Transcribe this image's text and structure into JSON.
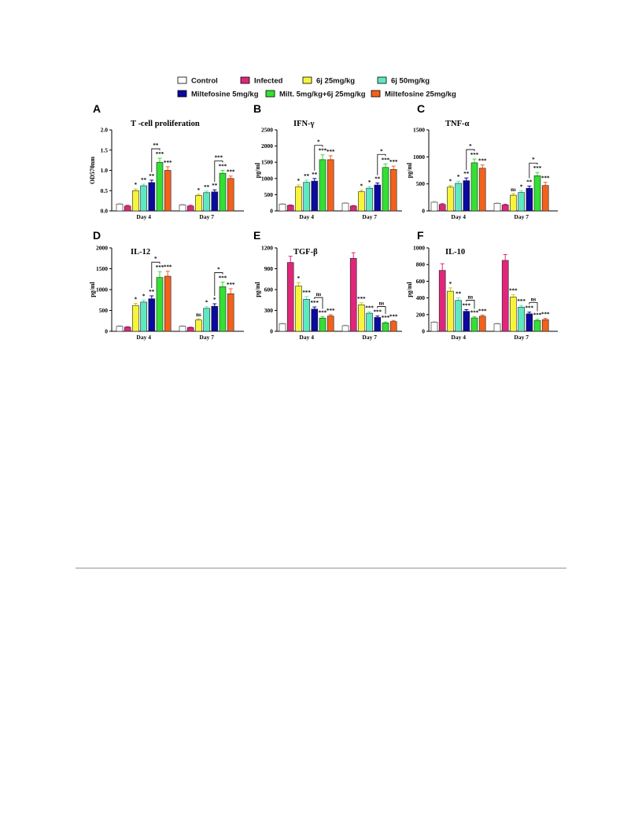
{
  "legend": [
    {
      "name": "Control",
      "color": "#ffffff"
    },
    {
      "name": "Infected",
      "color": "#e0267a"
    },
    {
      "name": "6j 25mg/kg",
      "color": "#f7f53a"
    },
    {
      "name": "6j  50mg/kg",
      "color": "#5ee8c2"
    },
    {
      "name": "Miltefosine 5mg/kg",
      "color": "#0a0a9e"
    },
    {
      "name": "Milt. 5mg/kg+6j 25mg/kg",
      "color": "#33e033"
    },
    {
      "name": "Miltefosine 25mg/kg",
      "color": "#f2621c"
    }
  ],
  "error_colors": [
    "#cccccc",
    "#e0267a",
    "#d9c800",
    "#5ee8c2",
    "#0a0a9e",
    "#33e033",
    "#f2621c"
  ],
  "chart_data": [
    {
      "letter": "A",
      "type": "bar",
      "title": "T -cell proliferation",
      "ylabel": "OD570nm",
      "ylim": [
        0,
        2.0
      ],
      "yticks": [
        "0.0",
        "0.5",
        "1.0",
        "1.5",
        "2.0"
      ],
      "categories": [
        "Day 4",
        "Day 7"
      ],
      "series": [
        {
          "name": "Control",
          "values": [
            0.17,
            0.15
          ],
          "errors": [
            0.02,
            0.02
          ]
        },
        {
          "name": "Infected",
          "values": [
            0.12,
            0.12
          ],
          "errors": [
            0.02,
            0.02
          ]
        },
        {
          "name": "6j 25mg/kg",
          "values": [
            0.5,
            0.38
          ],
          "errors": [
            0.04,
            0.03
          ]
        },
        {
          "name": "6j  50mg/kg",
          "values": [
            0.62,
            0.45
          ],
          "errors": [
            0.04,
            0.04
          ]
        },
        {
          "name": "Miltefosine 5mg/kg",
          "values": [
            0.7,
            0.47
          ],
          "errors": [
            0.06,
            0.05
          ]
        },
        {
          "name": "Milt. 5mg/kg+6j 25mg/kg",
          "values": [
            1.2,
            0.93
          ],
          "errors": [
            0.1,
            0.07
          ]
        },
        {
          "name": "Miltefosine 25mg/kg",
          "values": [
            1.0,
            0.8
          ],
          "errors": [
            0.09,
            0.06
          ]
        }
      ],
      "sig": [
        [
          "",
          "",
          "*",
          "**",
          "**",
          "***",
          "***"
        ],
        [
          "",
          "",
          "*",
          "**",
          "**",
          "***",
          "***"
        ]
      ],
      "brackets": [
        {
          "label": "**"
        },
        {
          "label": "***"
        }
      ]
    },
    {
      "letter": "B",
      "type": "bar",
      "title": "IFN-γ",
      "ylabel": "pg/ml",
      "ylim": [
        0,
        2500
      ],
      "yticks": [
        "0",
        "500",
        "1000",
        "1500",
        "2000",
        "2500"
      ],
      "categories": [
        "Day 4",
        "Day 7"
      ],
      "series": [
        {
          "name": "Control",
          "values": [
            210,
            240
          ],
          "errors": [
            20,
            20
          ]
        },
        {
          "name": "Infected",
          "values": [
            170,
            150
          ],
          "errors": [
            15,
            15
          ]
        },
        {
          "name": "6j 25mg/kg",
          "values": [
            740,
            590
          ],
          "errors": [
            60,
            50
          ]
        },
        {
          "name": "6j  50mg/kg",
          "values": [
            880,
            700
          ],
          "errors": [
            70,
            50
          ]
        },
        {
          "name": "Miltefosine 5mg/kg",
          "values": [
            920,
            800
          ],
          "errors": [
            80,
            60
          ]
        },
        {
          "name": "Milt. 5mg/kg+6j 25mg/kg",
          "values": [
            1580,
            1340
          ],
          "errors": [
            150,
            110
          ]
        },
        {
          "name": "Miltefosine 25mg/kg",
          "values": [
            1580,
            1280
          ],
          "errors": [
            120,
            100
          ]
        }
      ],
      "sig": [
        [
          "",
          "",
          "*",
          "**",
          "**",
          "***",
          "***"
        ],
        [
          "",
          "",
          "*",
          "*",
          "**",
          "***",
          "***"
        ]
      ],
      "brackets": [
        {
          "label": "*"
        },
        {
          "label": "*"
        }
      ]
    },
    {
      "letter": "C",
      "type": "bar",
      "title": "TNF-α",
      "ylabel": "pg/ml",
      "ylim": [
        0,
        1500
      ],
      "yticks": [
        "0",
        "500",
        "1000",
        "1500"
      ],
      "categories": [
        "Day 4",
        "Day 7"
      ],
      "series": [
        {
          "name": "Control",
          "values": [
            160,
            140
          ],
          "errors": [
            20,
            15
          ]
        },
        {
          "name": "Infected",
          "values": [
            120,
            110
          ],
          "errors": [
            15,
            15
          ]
        },
        {
          "name": "6j 25mg/kg",
          "values": [
            440,
            290
          ],
          "errors": [
            30,
            30
          ]
        },
        {
          "name": "6j  50mg/kg",
          "values": [
            510,
            340
          ],
          "errors": [
            40,
            30
          ]
        },
        {
          "name": "Miltefosine 5mg/kg",
          "values": [
            560,
            420
          ],
          "errors": [
            50,
            40
          ]
        },
        {
          "name": "Milt. 5mg/kg+6j 25mg/kg",
          "values": [
            890,
            650
          ],
          "errors": [
            70,
            60
          ]
        },
        {
          "name": "Miltefosine 25mg/kg",
          "values": [
            790,
            470
          ],
          "errors": [
            60,
            60
          ]
        }
      ],
      "sig": [
        [
          "",
          "",
          "*",
          "*",
          "**",
          "***",
          "***"
        ],
        [
          "",
          "",
          "ns",
          "*",
          "**",
          "***",
          "***"
        ]
      ],
      "brackets": [
        {
          "label": "*"
        },
        {
          "label": "*"
        }
      ]
    },
    {
      "letter": "D",
      "type": "bar",
      "title": "IL-12",
      "ylabel": "pg/ml",
      "ylim": [
        0,
        2000
      ],
      "yticks": [
        "0",
        "500",
        "1000",
        "1500",
        "2000"
      ],
      "categories": [
        "Day 4",
        "Day 7"
      ],
      "series": [
        {
          "name": "Control",
          "values": [
            120,
            120
          ],
          "errors": [
            15,
            15
          ]
        },
        {
          "name": "Infected",
          "values": [
            100,
            90
          ],
          "errors": [
            10,
            10
          ]
        },
        {
          "name": "6j 25mg/kg",
          "values": [
            620,
            270
          ],
          "errors": [
            50,
            30
          ]
        },
        {
          "name": "6j  50mg/kg",
          "values": [
            700,
            550
          ],
          "errors": [
            50,
            40
          ]
        },
        {
          "name": "Miltefosine 5mg/kg",
          "values": [
            780,
            600
          ],
          "errors": [
            70,
            60
          ]
        },
        {
          "name": "Milt. 5mg/kg+6j 25mg/kg",
          "values": [
            1290,
            1070
          ],
          "errors": [
            140,
            110
          ]
        },
        {
          "name": "Miltefosine 25mg/kg",
          "values": [
            1320,
            900
          ],
          "errors": [
            120,
            120
          ]
        }
      ],
      "sig": [
        [
          "",
          "",
          "*",
          "*",
          "**",
          "***",
          "***"
        ],
        [
          "",
          "",
          "ns",
          "*",
          "*",
          "***",
          "***"
        ]
      ],
      "brackets": [
        {
          "label": "*"
        },
        {
          "label": "*"
        }
      ]
    },
    {
      "letter": "E",
      "type": "bar",
      "title": "TGF-β",
      "ylabel": "pg/ml",
      "ylim": [
        0,
        1200
      ],
      "yticks": [
        "0",
        "300",
        "600",
        "900",
        "1200"
      ],
      "categories": [
        "Day 4",
        "Day 7"
      ],
      "series": [
        {
          "name": "Control",
          "values": [
            110,
            80
          ],
          "errors": [
            10,
            10
          ]
        },
        {
          "name": "Infected",
          "values": [
            990,
            1050
          ],
          "errors": [
            90,
            80
          ]
        },
        {
          "name": "6j 25mg/kg",
          "values": [
            650,
            380
          ],
          "errors": [
            50,
            30
          ]
        },
        {
          "name": "6j  50mg/kg",
          "values": [
            460,
            260
          ],
          "errors": [
            40,
            20
          ]
        },
        {
          "name": "Miltefosine 5mg/kg",
          "values": [
            320,
            200
          ],
          "errors": [
            30,
            20
          ]
        },
        {
          "name": "Milt. 5mg/kg+6j 25mg/kg",
          "values": [
            190,
            120
          ],
          "errors": [
            20,
            15
          ]
        },
        {
          "name": "Miltefosine 25mg/kg",
          "values": [
            220,
            140
          ],
          "errors": [
            20,
            15
          ]
        }
      ],
      "sig": [
        [
          "",
          "",
          "*",
          "***",
          "***",
          "***",
          "***"
        ],
        [
          "",
          "",
          "***",
          "***",
          "***",
          "***",
          "***"
        ]
      ],
      "brackets": [
        {
          "label": "ns"
        },
        {
          "label": "ns"
        }
      ]
    },
    {
      "letter": "F",
      "type": "bar",
      "title": "IL-10",
      "ylabel": "pg/ml",
      "ylim": [
        0,
        1000
      ],
      "yticks": [
        "0",
        "200",
        "400",
        "600",
        "800",
        "1000"
      ],
      "categories": [
        "Day 4",
        "Day 7"
      ],
      "series": [
        {
          "name": "Control",
          "values": [
            110,
            90
          ],
          "errors": [
            10,
            10
          ]
        },
        {
          "name": "Infected",
          "values": [
            730,
            850
          ],
          "errors": [
            80,
            70
          ]
        },
        {
          "name": "6j 25mg/kg",
          "values": [
            480,
            410
          ],
          "errors": [
            40,
            30
          ]
        },
        {
          "name": "6j  50mg/kg",
          "values": [
            370,
            290
          ],
          "errors": [
            30,
            20
          ]
        },
        {
          "name": "Miltefosine 5mg/kg",
          "values": [
            240,
            210
          ],
          "errors": [
            20,
            20
          ]
        },
        {
          "name": "Milt. 5mg/kg+6j 25mg/kg",
          "values": [
            160,
            130
          ],
          "errors": [
            15,
            15
          ]
        },
        {
          "name": "Miltefosine 25mg/kg",
          "values": [
            180,
            140
          ],
          "errors": [
            15,
            15
          ]
        }
      ],
      "sig": [
        [
          "",
          "",
          "*",
          "**",
          "***",
          "***",
          "***"
        ],
        [
          "",
          "",
          "***",
          "***",
          "***",
          "***",
          "***"
        ]
      ],
      "brackets": [
        {
          "label": "ns"
        },
        {
          "label": "ns"
        }
      ]
    }
  ]
}
